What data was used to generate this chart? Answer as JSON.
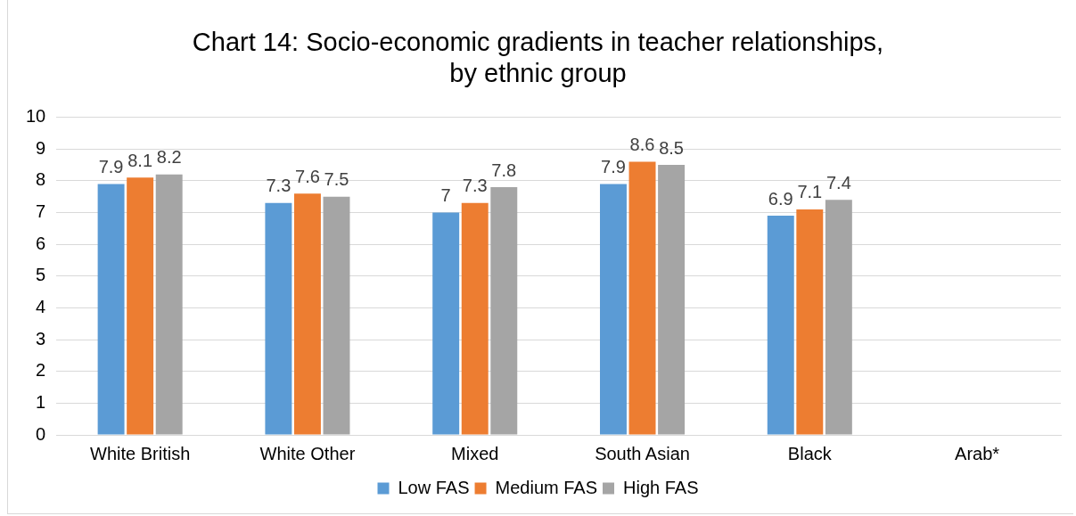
{
  "chart_data": {
    "type": "bar",
    "title": "Chart 14: Socio-economic gradients in teacher relationships, by ethnic group",
    "categories": [
      "White British",
      "White Other",
      "Mixed",
      "South Asian",
      "Black",
      "Arab*"
    ],
    "series": [
      {
        "name": "Low FAS",
        "color": "#5b9bd5",
        "values": [
          7.9,
          7.3,
          7,
          7.9,
          6.9,
          null
        ]
      },
      {
        "name": "Medium FAS",
        "color": "#ed7d31",
        "values": [
          8.1,
          7.6,
          7.3,
          8.6,
          7.1,
          null
        ]
      },
      {
        "name": "High FAS",
        "color": "#a5a5a5",
        "values": [
          8.2,
          7.5,
          7.8,
          8.5,
          7.4,
          null
        ]
      }
    ],
    "ylim": [
      0,
      10
    ],
    "yticks": [
      0,
      1,
      2,
      3,
      4,
      5,
      6,
      7,
      8,
      9,
      10
    ],
    "grid": "y",
    "legend": "bottom",
    "data_labels": true
  }
}
